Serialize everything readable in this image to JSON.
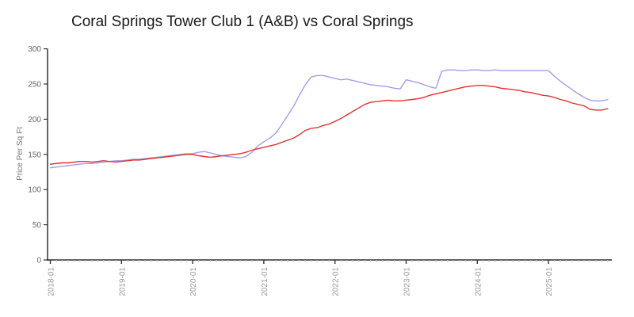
{
  "page": {
    "background": "#ffffff"
  },
  "chart_data": {
    "type": "line",
    "title": "Coral Springs Tower Club 1 (A&B) vs Coral Springs",
    "ylabel": "Price Per Sq Ft",
    "xlabel": "",
    "x_start": "2018-01",
    "x_interval": "month",
    "x_end": "2025-11",
    "x_tick_labels": [
      "2018-01",
      "2019-01",
      "2020-01",
      "2021-01",
      "2022-01",
      "2023-01",
      "2024-01",
      "2025-01"
    ],
    "ylim": [
      0,
      300
    ],
    "y_ticks": [
      0,
      50,
      100,
      150,
      200,
      250,
      300
    ],
    "grid": false,
    "legend_position": "none",
    "series": [
      {
        "name": "Coral Springs Tower Club 1 (A&B)",
        "color": "#e23131",
        "values": [
          136,
          137,
          138,
          138,
          139,
          140,
          140,
          139,
          140,
          141,
          140,
          139,
          140,
          141,
          142,
          142,
          143,
          144,
          145,
          146,
          147,
          148,
          149,
          150,
          150,
          148,
          147,
          146,
          147,
          148,
          149,
          150,
          151,
          153,
          156,
          158,
          160,
          162,
          164,
          167,
          170,
          173,
          178,
          184,
          187,
          188,
          191,
          193,
          197,
          201,
          206,
          211,
          216,
          221,
          224,
          225,
          226,
          227,
          226,
          226,
          227,
          228,
          229,
          231,
          234,
          236,
          238,
          240,
          242,
          244,
          246,
          247,
          248,
          248,
          247,
          246,
          244,
          243,
          242,
          241,
          239,
          238,
          236,
          234,
          233,
          231,
          228,
          226,
          223,
          221,
          219,
          214,
          213,
          213,
          215
        ]
      },
      {
        "name": "Coral Springs",
        "color": "#9f9fe8",
        "values": [
          131,
          132,
          133,
          134,
          135,
          136,
          137,
          137,
          138,
          139,
          140,
          141,
          141,
          142,
          143,
          143,
          144,
          145,
          146,
          147,
          148,
          149,
          150,
          151,
          151,
          153,
          154,
          152,
          150,
          148,
          147,
          146,
          145,
          147,
          153,
          162,
          168,
          173,
          180,
          192,
          205,
          218,
          234,
          249,
          260,
          262,
          262,
          260,
          258,
          256,
          257,
          255,
          253,
          251,
          249,
          248,
          247,
          246,
          244,
          243,
          256,
          254,
          252,
          249,
          246,
          244,
          268,
          270,
          270,
          269,
          269,
          270,
          270,
          269,
          269,
          270,
          269,
          269,
          269,
          269,
          269,
          269,
          269,
          269,
          269,
          261,
          254,
          248,
          242,
          236,
          231,
          227,
          226,
          226,
          228
        ]
      }
    ],
    "colors": {
      "axis": "#000000",
      "major_tick": "#333333",
      "minor_tick": "#c8c8c8",
      "y_tick_label": "#666666",
      "x_tick_label": "#999999",
      "axis_title": "#777777",
      "title": "#1a1a1a"
    }
  }
}
